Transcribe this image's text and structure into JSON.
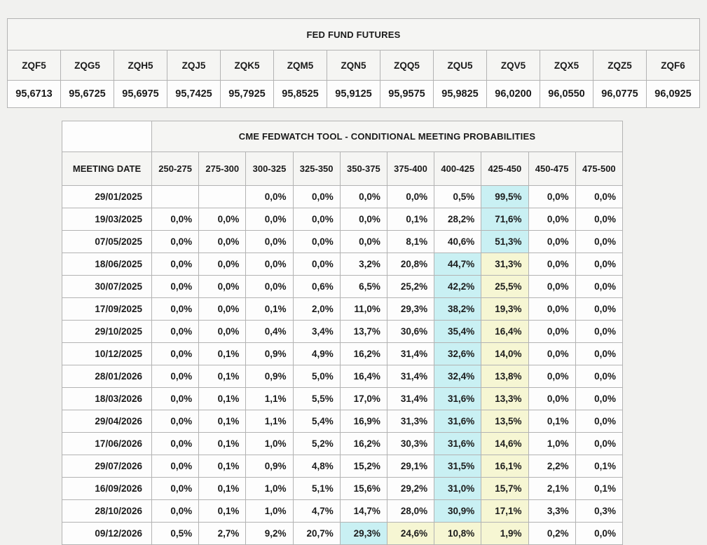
{
  "page_bg": "#f1f1ef",
  "futures_table": {
    "title": "FED FUND FUTURES",
    "columns": [
      "ZQF5",
      "ZQG5",
      "ZQH5",
      "ZQJ5",
      "ZQK5",
      "ZQM5",
      "ZQN5",
      "ZQQ5",
      "ZQU5",
      "ZQV5",
      "ZQX5",
      "ZQZ5",
      "ZQF6"
    ],
    "values": [
      "95,6713",
      "95,6725",
      "95,6975",
      "95,7425",
      "95,7925",
      "95,8525",
      "95,9125",
      "95,9575",
      "95,9825",
      "96,0200",
      "96,0550",
      "96,0775",
      "96,0925"
    ]
  },
  "fedwatch_table": {
    "title": "CME FEDWATCH TOOL - CONDITIONAL MEETING PROBABILITIES",
    "date_header": "MEETING DATE",
    "rate_columns": [
      "250-275",
      "275-300",
      "300-325",
      "325-350",
      "350-375",
      "375-400",
      "400-425",
      "425-450",
      "450-475",
      "475-500"
    ],
    "highlight_colors": {
      "cyan": "#c9f0f3",
      "yellow": "#f6f6d3"
    },
    "rows": [
      {
        "date": "29/01/2025",
        "values": [
          "",
          "",
          "0,0%",
          "0,0%",
          "0,0%",
          "0,0%",
          "0,5%",
          "99,5%",
          "0,0%",
          "0,0%"
        ],
        "cyan": [
          7
        ],
        "yellow": []
      },
      {
        "date": "19/03/2025",
        "values": [
          "0,0%",
          "0,0%",
          "0,0%",
          "0,0%",
          "0,0%",
          "0,1%",
          "28,2%",
          "71,6%",
          "0,0%",
          "0,0%"
        ],
        "cyan": [
          7
        ],
        "yellow": []
      },
      {
        "date": "07/05/2025",
        "values": [
          "0,0%",
          "0,0%",
          "0,0%",
          "0,0%",
          "0,0%",
          "8,1%",
          "40,6%",
          "51,3%",
          "0,0%",
          "0,0%"
        ],
        "cyan": [
          7
        ],
        "yellow": []
      },
      {
        "date": "18/06/2025",
        "values": [
          "0,0%",
          "0,0%",
          "0,0%",
          "0,0%",
          "3,2%",
          "20,8%",
          "44,7%",
          "31,3%",
          "0,0%",
          "0,0%"
        ],
        "cyan": [
          6
        ],
        "yellow": [
          7
        ]
      },
      {
        "date": "30/07/2025",
        "values": [
          "0,0%",
          "0,0%",
          "0,0%",
          "0,6%",
          "6,5%",
          "25,2%",
          "42,2%",
          "25,5%",
          "0,0%",
          "0,0%"
        ],
        "cyan": [
          6
        ],
        "yellow": [
          7
        ]
      },
      {
        "date": "17/09/2025",
        "values": [
          "0,0%",
          "0,0%",
          "0,1%",
          "2,0%",
          "11,0%",
          "29,3%",
          "38,2%",
          "19,3%",
          "0,0%",
          "0,0%"
        ],
        "cyan": [
          6
        ],
        "yellow": [
          7
        ]
      },
      {
        "date": "29/10/2025",
        "values": [
          "0,0%",
          "0,0%",
          "0,4%",
          "3,4%",
          "13,7%",
          "30,6%",
          "35,4%",
          "16,4%",
          "0,0%",
          "0,0%"
        ],
        "cyan": [
          6
        ],
        "yellow": [
          7
        ]
      },
      {
        "date": "10/12/2025",
        "values": [
          "0,0%",
          "0,1%",
          "0,9%",
          "4,9%",
          "16,2%",
          "31,4%",
          "32,6%",
          "14,0%",
          "0,0%",
          "0,0%"
        ],
        "cyan": [
          6
        ],
        "yellow": [
          7
        ]
      },
      {
        "date": "28/01/2026",
        "values": [
          "0,0%",
          "0,1%",
          "0,9%",
          "5,0%",
          "16,4%",
          "31,4%",
          "32,4%",
          "13,8%",
          "0,0%",
          "0,0%"
        ],
        "cyan": [
          6
        ],
        "yellow": [
          7
        ]
      },
      {
        "date": "18/03/2026",
        "values": [
          "0,0%",
          "0,1%",
          "1,1%",
          "5,5%",
          "17,0%",
          "31,4%",
          "31,6%",
          "13,3%",
          "0,0%",
          "0,0%"
        ],
        "cyan": [
          6
        ],
        "yellow": [
          7
        ]
      },
      {
        "date": "29/04/2026",
        "values": [
          "0,0%",
          "0,1%",
          "1,1%",
          "5,4%",
          "16,9%",
          "31,3%",
          "31,6%",
          "13,5%",
          "0,1%",
          "0,0%"
        ],
        "cyan": [
          6
        ],
        "yellow": [
          7
        ]
      },
      {
        "date": "17/06/2026",
        "values": [
          "0,0%",
          "0,1%",
          "1,0%",
          "5,2%",
          "16,2%",
          "30,3%",
          "31,6%",
          "14,6%",
          "1,0%",
          "0,0%"
        ],
        "cyan": [
          6
        ],
        "yellow": [
          7
        ]
      },
      {
        "date": "29/07/2026",
        "values": [
          "0,0%",
          "0,1%",
          "0,9%",
          "4,8%",
          "15,2%",
          "29,1%",
          "31,5%",
          "16,1%",
          "2,2%",
          "0,1%"
        ],
        "cyan": [
          6
        ],
        "yellow": [
          7
        ]
      },
      {
        "date": "16/09/2026",
        "values": [
          "0,0%",
          "0,1%",
          "1,0%",
          "5,1%",
          "15,6%",
          "29,2%",
          "31,0%",
          "15,7%",
          "2,1%",
          "0,1%"
        ],
        "cyan": [
          6
        ],
        "yellow": [
          7
        ]
      },
      {
        "date": "28/10/2026",
        "values": [
          "0,0%",
          "0,1%",
          "1,0%",
          "4,7%",
          "14,7%",
          "28,0%",
          "30,9%",
          "17,1%",
          "3,3%",
          "0,3%"
        ],
        "cyan": [
          6
        ],
        "yellow": [
          7
        ]
      },
      {
        "date": "09/12/2026",
        "values": [
          "0,5%",
          "2,7%",
          "9,2%",
          "20,7%",
          "29,3%",
          "24,6%",
          "10,8%",
          "1,9%",
          "0,2%",
          "0,0%"
        ],
        "cyan": [
          4
        ],
        "yellow": [
          5,
          6,
          7
        ]
      }
    ]
  }
}
